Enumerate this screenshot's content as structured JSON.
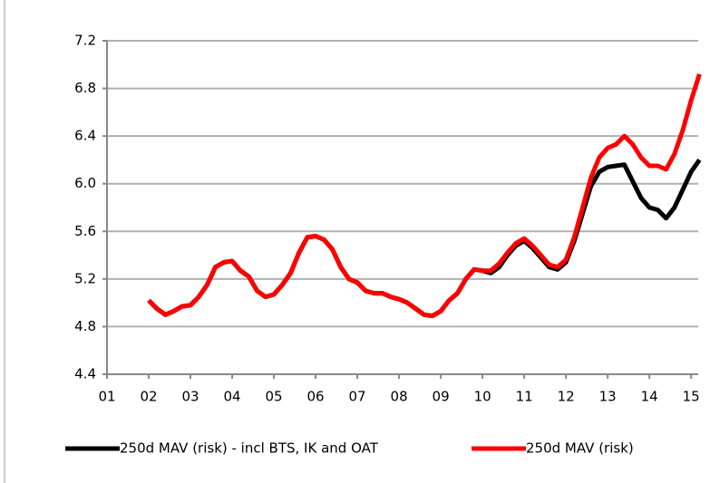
{
  "chart_data": {
    "type": "line",
    "x": [
      2.0,
      2.2,
      2.4,
      2.6,
      2.8,
      3.0,
      3.2,
      3.4,
      3.6,
      3.8,
      4.0,
      4.2,
      4.4,
      4.6,
      4.8,
      5.0,
      5.2,
      5.4,
      5.6,
      5.8,
      6.0,
      6.2,
      6.4,
      6.6,
      6.8,
      7.0,
      7.2,
      7.4,
      7.6,
      7.8,
      8.0,
      8.2,
      8.4,
      8.6,
      8.8,
      9.0,
      9.2,
      9.4,
      9.6,
      9.8,
      10.0,
      10.2,
      10.4,
      10.6,
      10.8,
      11.0,
      11.2,
      11.4,
      11.6,
      11.8,
      12.0,
      12.2,
      12.4,
      12.6,
      12.8,
      13.0,
      13.2,
      13.4,
      13.6,
      13.8,
      14.0,
      14.2,
      14.4,
      14.6,
      14.8,
      15.0,
      15.2
    ],
    "series": [
      {
        "name": "250d MAV (risk) - incl BTS, IK and OAT",
        "color": "#000000",
        "values": [
          5.02,
          4.95,
          4.9,
          4.93,
          4.97,
          4.98,
          5.05,
          5.15,
          5.3,
          5.34,
          5.35,
          5.27,
          5.22,
          5.1,
          5.05,
          5.07,
          5.15,
          5.25,
          5.42,
          5.55,
          5.56,
          5.53,
          5.45,
          5.3,
          5.2,
          5.17,
          5.1,
          5.08,
          5.08,
          5.05,
          5.03,
          5.0,
          4.95,
          4.9,
          4.89,
          4.93,
          5.02,
          5.08,
          5.2,
          5.28,
          5.27,
          5.25,
          5.3,
          5.4,
          5.48,
          5.52,
          5.46,
          5.38,
          5.3,
          5.28,
          5.34,
          5.52,
          5.75,
          5.98,
          6.1,
          6.14,
          6.15,
          6.16,
          6.02,
          5.88,
          5.8,
          5.78,
          5.71,
          5.8,
          5.95,
          6.1,
          6.2
        ]
      },
      {
        "name": "250d MAV (risk)",
        "color": "#ff0000",
        "values": [
          5.02,
          4.95,
          4.9,
          4.93,
          4.97,
          4.98,
          5.05,
          5.15,
          5.3,
          5.34,
          5.35,
          5.27,
          5.22,
          5.1,
          5.05,
          5.07,
          5.15,
          5.25,
          5.42,
          5.55,
          5.56,
          5.53,
          5.45,
          5.3,
          5.2,
          5.17,
          5.1,
          5.08,
          5.08,
          5.05,
          5.03,
          5.0,
          4.95,
          4.9,
          4.89,
          4.93,
          5.02,
          5.08,
          5.2,
          5.28,
          5.27,
          5.27,
          5.33,
          5.42,
          5.5,
          5.54,
          5.48,
          5.4,
          5.32,
          5.3,
          5.36,
          5.55,
          5.8,
          6.05,
          6.22,
          6.3,
          6.33,
          6.4,
          6.33,
          6.22,
          6.15,
          6.15,
          6.12,
          6.25,
          6.45,
          6.7,
          6.92
        ]
      }
    ],
    "xlim": [
      1,
      15.17
    ],
    "xticks": [
      {
        "value": 1,
        "label": "01"
      },
      {
        "value": 2,
        "label": "02"
      },
      {
        "value": 3,
        "label": "03"
      },
      {
        "value": 4,
        "label": "04"
      },
      {
        "value": 5,
        "label": "05"
      },
      {
        "value": 6,
        "label": "06"
      },
      {
        "value": 7,
        "label": "07"
      },
      {
        "value": 8,
        "label": "08"
      },
      {
        "value": 9,
        "label": "09"
      },
      {
        "value": 10,
        "label": "10"
      },
      {
        "value": 11,
        "label": "11"
      },
      {
        "value": 12,
        "label": "12"
      },
      {
        "value": 13,
        "label": "13"
      },
      {
        "value": 14,
        "label": "14"
      },
      {
        "value": 15,
        "label": "15"
      }
    ],
    "ylim": [
      4.4,
      7.2
    ],
    "yticks": [
      4.4,
      4.8,
      5.2,
      5.6,
      {
        "value": 6,
        "label": "6.0"
      },
      6.4,
      6.8,
      7.2
    ],
    "grid": true,
    "legend": "bottom"
  }
}
